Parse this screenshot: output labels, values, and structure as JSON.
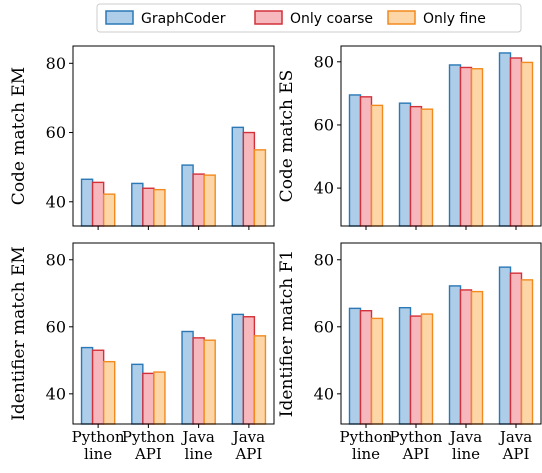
{
  "legend": {
    "placement": "top-center",
    "entries": [
      "GraphCoder",
      "Only coarse",
      "Only fine"
    ]
  },
  "colors": {
    "GraphCoder": {
      "fill": "#aecde8",
      "edge": "#2a78b5"
    },
    "Only coarse": {
      "fill": "#f6b8bd",
      "edge": "#d4303a"
    },
    "Only fine": {
      "fill": "#fdd6a8",
      "edge": "#f28a1e"
    }
  },
  "chart_data": [
    {
      "type": "bar",
      "ylabel": "Code match EM",
      "categories": [
        "Python line",
        "Python API",
        "Java line",
        "Java API"
      ],
      "category_lines": [
        [
          "Python",
          "line"
        ],
        [
          "Python",
          "API"
        ],
        [
          "Java",
          "line"
        ],
        [
          "Java",
          "API"
        ]
      ],
      "ylim": [
        33,
        85
      ],
      "yticks": [
        40,
        60,
        80
      ],
      "show_xticklabels": false,
      "series": [
        {
          "name": "GraphCoder",
          "values": [
            46.5,
            45.3,
            50.6,
            61.5
          ]
        },
        {
          "name": "Only coarse",
          "values": [
            45.6,
            43.9,
            48.0,
            60.0
          ]
        },
        {
          "name": "Only fine",
          "values": [
            42.2,
            43.5,
            47.7,
            55.0
          ]
        }
      ]
    },
    {
      "type": "bar",
      "ylabel": "Code match ES",
      "categories": [
        "Python line",
        "Python API",
        "Java line",
        "Java API"
      ],
      "category_lines": [
        [
          "Python",
          "line"
        ],
        [
          "Python",
          "API"
        ],
        [
          "Java",
          "line"
        ],
        [
          "Java",
          "API"
        ]
      ],
      "ylim": [
        28,
        85
      ],
      "yticks": [
        40,
        60,
        80
      ],
      "show_xticklabels": false,
      "series": [
        {
          "name": "GraphCoder",
          "values": [
            69.5,
            66.9,
            79.0,
            82.8
          ]
        },
        {
          "name": "Only coarse",
          "values": [
            68.9,
            65.8,
            78.2,
            81.2
          ]
        },
        {
          "name": "Only fine",
          "values": [
            66.2,
            65.0,
            77.8,
            79.8
          ]
        }
      ]
    },
    {
      "type": "bar",
      "ylabel": "Identifier match EM",
      "categories": [
        "Python line",
        "Python API",
        "Java line",
        "Java API"
      ],
      "category_lines": [
        [
          "Python",
          "line"
        ],
        [
          "Python",
          "API"
        ],
        [
          "Java",
          "line"
        ],
        [
          "Java",
          "API"
        ]
      ],
      "ylim": [
        31,
        85
      ],
      "yticks": [
        40,
        60,
        80
      ],
      "show_xticklabels": true,
      "series": [
        {
          "name": "GraphCoder",
          "values": [
            53.8,
            48.8,
            58.6,
            63.7
          ]
        },
        {
          "name": "Only coarse",
          "values": [
            53.0,
            46.1,
            56.7,
            63.0
          ]
        },
        {
          "name": "Only fine",
          "values": [
            49.6,
            46.5,
            56.0,
            57.3
          ]
        }
      ]
    },
    {
      "type": "bar",
      "ylabel": "Identifier match F1",
      "categories": [
        "Python line",
        "Python API",
        "Java line",
        "Java API"
      ],
      "category_lines": [
        [
          "Python",
          "line"
        ],
        [
          "Python",
          "API"
        ],
        [
          "Java",
          "line"
        ],
        [
          "Java",
          "API"
        ]
      ],
      "ylim": [
        31,
        85
      ],
      "yticks": [
        40,
        60,
        80
      ],
      "show_xticklabels": true,
      "series": [
        {
          "name": "GraphCoder",
          "values": [
            65.5,
            65.7,
            72.2,
            77.8
          ]
        },
        {
          "name": "Only coarse",
          "values": [
            64.8,
            63.2,
            71.0,
            76.0
          ]
        },
        {
          "name": "Only fine",
          "values": [
            62.5,
            63.8,
            70.5,
            74.0
          ]
        }
      ]
    }
  ]
}
